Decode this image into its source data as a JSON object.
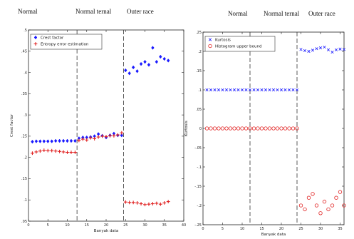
{
  "chart_data": [
    {
      "type": "scatter",
      "headers": [
        "Normal",
        "Normal ternal",
        "Outer race"
      ],
      "dividers": [
        12.5,
        24.5
      ],
      "xlabel": "Banyak data",
      "ylabel": "Crest factor",
      "xlim": [
        0,
        40
      ],
      "ylim": [
        0.05,
        0.5
      ],
      "xticks": [
        0,
        5,
        10,
        15,
        20,
        25,
        30,
        35,
        40
      ],
      "yticks": [
        0.05,
        0.1,
        0.15,
        0.2,
        0.25,
        0.3,
        0.35,
        0.4,
        0.45,
        0.5
      ],
      "legend_position": "top-left",
      "series": [
        {
          "name": "Crest factor",
          "marker": "diamond",
          "color": "#1a1aff",
          "x": [
            1,
            2,
            3,
            4,
            5,
            6,
            7,
            8,
            9,
            10,
            11,
            12,
            13,
            14,
            15,
            16,
            17,
            18,
            19,
            20,
            21,
            22,
            23,
            24,
            25,
            26,
            27,
            28,
            29,
            30,
            31,
            32,
            33,
            34,
            35,
            36
          ],
          "y": [
            0.237,
            0.238,
            0.238,
            0.238,
            0.238,
            0.238,
            0.239,
            0.239,
            0.239,
            0.239,
            0.239,
            0.239,
            0.245,
            0.247,
            0.247,
            0.248,
            0.25,
            0.255,
            0.251,
            0.247,
            0.252,
            0.256,
            0.252,
            0.252,
            0.405,
            0.398,
            0.412,
            0.403,
            0.42,
            0.425,
            0.418,
            0.458,
            0.425,
            0.437,
            0.432,
            0.428
          ]
        },
        {
          "name": "Entropy error estimation",
          "marker": "plus",
          "color": "#e02020",
          "x": [
            1,
            2,
            3,
            4,
            5,
            6,
            7,
            8,
            9,
            10,
            11,
            12,
            13,
            14,
            15,
            16,
            17,
            18,
            19,
            20,
            21,
            22,
            23,
            24,
            25,
            26,
            27,
            28,
            29,
            30,
            31,
            32,
            33,
            34,
            35,
            36
          ],
          "y": [
            0.21,
            0.213,
            0.215,
            0.217,
            0.216,
            0.216,
            0.215,
            0.214,
            0.213,
            0.212,
            0.212,
            0.212,
            0.24,
            0.243,
            0.241,
            0.246,
            0.244,
            0.248,
            0.25,
            0.249,
            0.251,
            0.251,
            0.253,
            0.258,
            0.095,
            0.094,
            0.094,
            0.093,
            0.091,
            0.089,
            0.09,
            0.091,
            0.092,
            0.09,
            0.093,
            0.096
          ]
        }
      ]
    },
    {
      "type": "scatter",
      "headers": [
        "Normal",
        "Normal ternal",
        "Outer race"
      ],
      "dividers": [
        12,
        24
      ],
      "xlabel": "Banyak data",
      "ylabel": "Kurtosis",
      "xlim": [
        0,
        36
      ],
      "ylim": [
        -0.25,
        0.25
      ],
      "xticks": [
        0,
        5,
        10,
        15,
        20,
        25,
        30,
        35
      ],
      "yticks": [
        -0.25,
        -0.2,
        -0.15,
        -0.1,
        -0.05,
        0,
        0.05,
        0.1,
        0.15,
        0.2,
        0.25
      ],
      "legend_position": "top-left",
      "series": [
        {
          "name": "Kurtosis",
          "marker": "x",
          "color": "#1a1aff",
          "x": [
            1,
            2,
            3,
            4,
            5,
            6,
            7,
            8,
            9,
            10,
            11,
            12,
            13,
            14,
            15,
            16,
            17,
            18,
            19,
            20,
            21,
            22,
            23,
            24,
            25,
            26,
            27,
            28,
            29,
            30,
            31,
            32,
            33,
            34,
            35,
            36
          ],
          "y": [
            0.1,
            0.1,
            0.1,
            0.1,
            0.1,
            0.1,
            0.1,
            0.1,
            0.1,
            0.1,
            0.1,
            0.1,
            0.1,
            0.1,
            0.1,
            0.1,
            0.1,
            0.1,
            0.1,
            0.1,
            0.1,
            0.1,
            0.1,
            0.1,
            0.205,
            0.202,
            0.2,
            0.203,
            0.207,
            0.209,
            0.211,
            0.204,
            0.198,
            0.204,
            0.206,
            0.205
          ]
        },
        {
          "name": "Histogram upper bound",
          "marker": "circle",
          "color": "#e02020",
          "x": [
            1,
            2,
            3,
            4,
            5,
            6,
            7,
            8,
            9,
            10,
            11,
            12,
            13,
            14,
            15,
            16,
            17,
            18,
            19,
            20,
            21,
            22,
            23,
            24,
            25,
            26,
            27,
            28,
            29,
            30,
            31,
            32,
            33,
            34,
            35,
            36
          ],
          "y": [
            0,
            0,
            0,
            0,
            0,
            0,
            0,
            0,
            0,
            0,
            0,
            0,
            0,
            0,
            0,
            0,
            0,
            0,
            0,
            0,
            0,
            0,
            0,
            0,
            -0.2,
            -0.21,
            -0.18,
            -0.17,
            -0.2,
            -0.22,
            -0.19,
            -0.21,
            -0.2,
            -0.18,
            -0.165,
            -0.2
          ]
        }
      ]
    }
  ]
}
